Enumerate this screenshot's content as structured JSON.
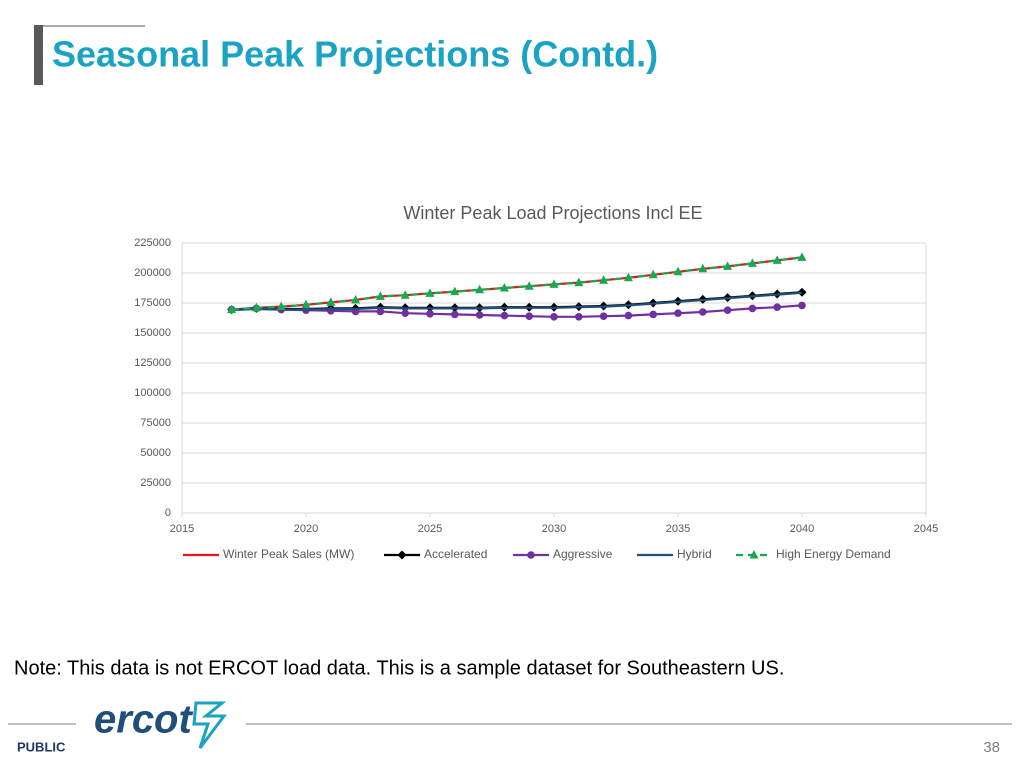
{
  "slide": {
    "title": "Seasonal Peak Projections (Contd.)",
    "note": "Note: This data is not ERCOT load data. This is a sample dataset for Southeastern US.",
    "logo": "ercot",
    "footer": "PUBLIC",
    "page_number": "38"
  },
  "chart_data": {
    "type": "line",
    "title": "Winter Peak Load Projections Incl EE",
    "x": [
      2017,
      2018,
      2019,
      2020,
      2021,
      2022,
      2023,
      2024,
      2025,
      2026,
      2027,
      2028,
      2029,
      2030,
      2031,
      2032,
      2033,
      2034,
      2035,
      2036,
      2037,
      2038,
      2039,
      2040
    ],
    "xlim": [
      2015,
      2045
    ],
    "xticks": [
      2015,
      2020,
      2025,
      2030,
      2035,
      2040,
      2045
    ],
    "ylim": [
      0,
      225000
    ],
    "yticks": [
      0,
      25000,
      50000,
      75000,
      100000,
      125000,
      150000,
      175000,
      200000,
      225000
    ],
    "grid": true,
    "legend": "bottom",
    "series": [
      {
        "name": "Winter Peak Sales (MW)",
        "color": "#e8141b",
        "style": "solid",
        "marker": "none",
        "values": [
          169500,
          171000,
          172000,
          173500,
          175500,
          177500,
          180500,
          181500,
          183000,
          184500,
          186000,
          187500,
          189000,
          190500,
          192000,
          194000,
          196000,
          198500,
          201000,
          203500,
          205500,
          208000,
          210500,
          213000
        ]
      },
      {
        "name": "Accelerated",
        "color": "#000000",
        "style": "solid",
        "marker": "diamond",
        "values": [
          169500,
          170500,
          170000,
          170000,
          170500,
          170500,
          171500,
          171000,
          171000,
          171000,
          171000,
          171500,
          171500,
          171500,
          172000,
          172500,
          173500,
          175000,
          176500,
          178000,
          179500,
          181000,
          182500,
          184000
        ]
      },
      {
        "name": "Aggressive",
        "color": "#7030a0",
        "style": "solid",
        "marker": "circle",
        "values": [
          169500,
          170500,
          169500,
          169000,
          168500,
          168000,
          168000,
          166500,
          166000,
          165500,
          165000,
          164500,
          164000,
          163500,
          163500,
          164000,
          164500,
          165500,
          166500,
          167500,
          169000,
          170500,
          171500,
          173000
        ]
      },
      {
        "name": "Hybrid",
        "color": "#1f4e79",
        "style": "solid",
        "marker": "none",
        "values": [
          169000,
          170000,
          169500,
          169500,
          170000,
          170000,
          171000,
          170500,
          170500,
          170500,
          170500,
          171000,
          171000,
          171000,
          171500,
          172000,
          173000,
          174500,
          176000,
          177500,
          179000,
          180500,
          182000,
          183500
        ]
      },
      {
        "name": "High Energy Demand",
        "color": "#1aa850",
        "style": "dashed",
        "marker": "triangle",
        "values": [
          169500,
          171000,
          172000,
          173500,
          175500,
          177500,
          180500,
          181500,
          183000,
          184500,
          186000,
          187500,
          189000,
          190500,
          192000,
          194000,
          196000,
          198500,
          201000,
          203500,
          205500,
          208000,
          210500,
          213000
        ]
      }
    ]
  }
}
